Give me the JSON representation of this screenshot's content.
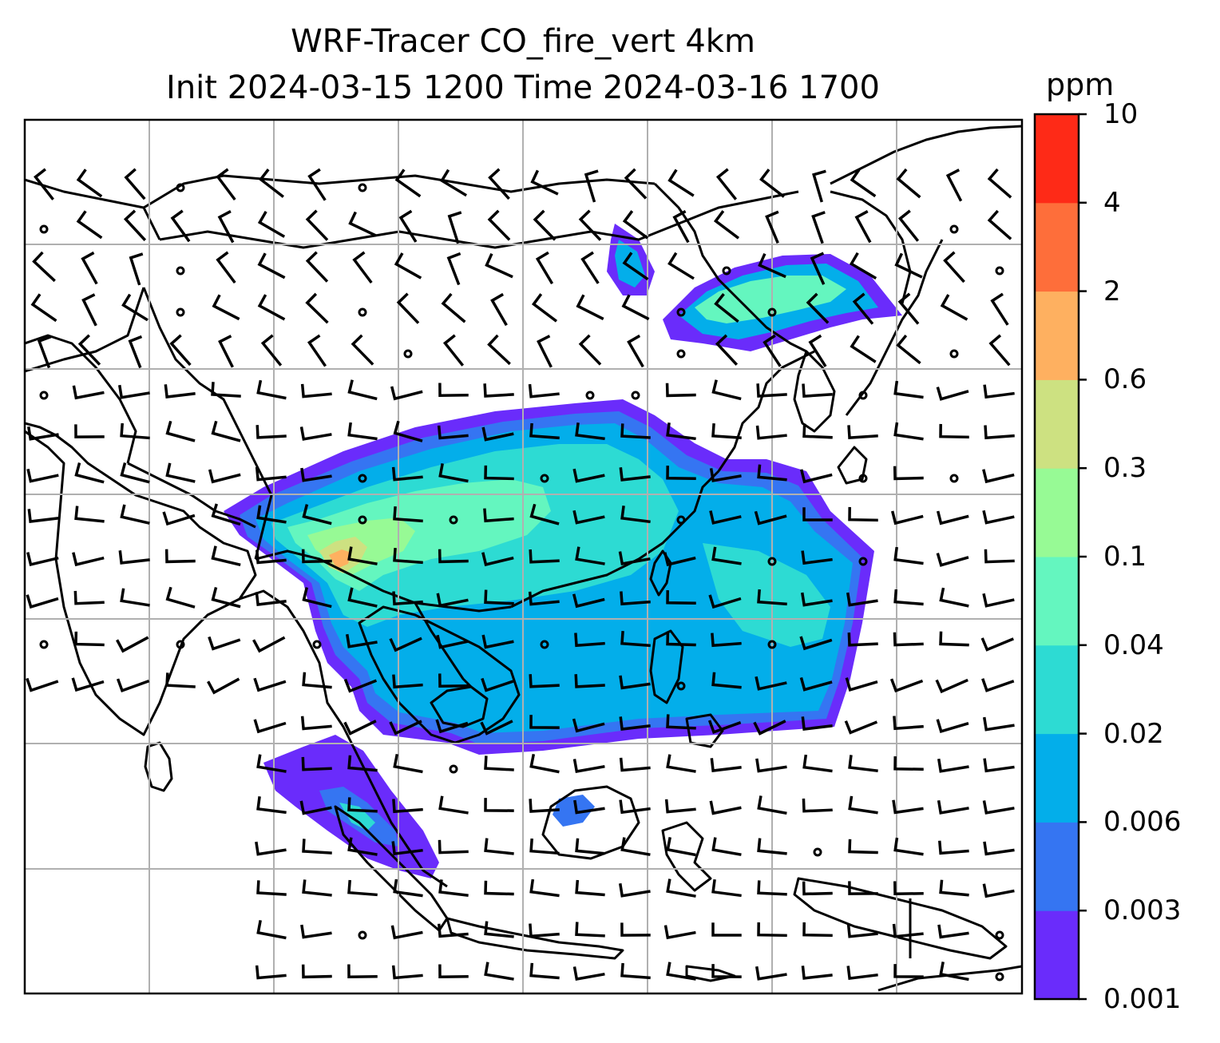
{
  "title": {
    "line1": "WRF-Tracer CO_fire_vert 4km",
    "line2": "Init 2024-03-15 1200 Time 2024-03-16 1700"
  },
  "colorbar": {
    "unit": "ppm",
    "levels": [
      "0.001",
      "0.003",
      "0.006",
      "0.02",
      "0.04",
      "0.1",
      "0.3",
      "0.6",
      "2",
      "4",
      "10"
    ],
    "colors": [
      "#6a2cfb",
      "#3575f2",
      "#03aeea",
      "#2ddbd3",
      "#64f6bf",
      "#97fa95",
      "#cde181",
      "#feb060",
      "#fe6e3a",
      "#fe2a17"
    ]
  },
  "map": {
    "gridlines": true,
    "background": "#ffffff",
    "coastline_color": "#000000",
    "grid_color": "#b0b0b0"
  }
}
